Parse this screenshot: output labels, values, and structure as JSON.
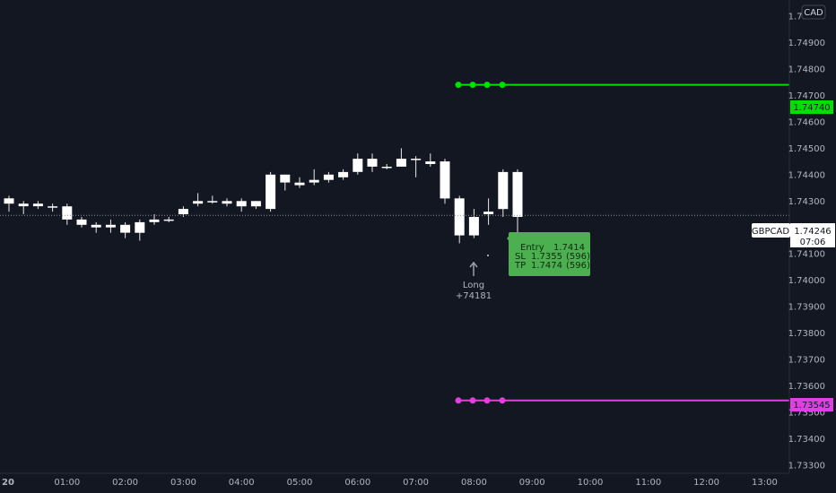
{
  "currency_badge": "CAD",
  "symbol": "GBPCAD",
  "last_price": "1.74246",
  "countdown": "07:06",
  "tp_level_label": "1.74740",
  "sl_level_label": "1.73545",
  "signal": {
    "label": "Long",
    "price": "+74181"
  },
  "trade_box": {
    "entry": [
      "Entry",
      "1.7414",
      ""
    ],
    "sl": [
      "SL",
      "1.7355",
      "(596)"
    ],
    "tp": [
      "TP",
      "1.7474",
      "(596)"
    ]
  },
  "colors": {
    "background": "#131722",
    "tp": "#00e000",
    "sl": "#e040e0",
    "trade_box": "#4caf50"
  },
  "chart_data": {
    "type": "candlestick",
    "symbol": "GBPCAD",
    "xlabel": "",
    "ylabel": "",
    "ylim": [
      1.7327,
      1.7514
    ],
    "y_ticks": [
      1.75,
      1.749,
      1.748,
      1.747,
      1.746,
      1.745,
      1.744,
      1.743,
      1.741,
      1.74,
      1.739,
      1.738,
      1.737,
      1.736,
      1.735,
      1.734,
      1.733
    ],
    "y_tick_labels": [
      "1.75000",
      "1.74900",
      "1.74800",
      "1.74700",
      "1.74600",
      "1.74500",
      "1.74400",
      "1.74300",
      "1.74100",
      "1.74000",
      "1.73900",
      "1.73800",
      "1.73700",
      "1.73600",
      "1.73500",
      "1.73400",
      "1.73300"
    ],
    "x_ticks": [
      "20",
      "01:00",
      "02:00",
      "03:00",
      "04:00",
      "05:00",
      "06:00",
      "07:00",
      "08:00",
      "09:00",
      "10:00",
      "11:00",
      "12:00",
      "13:00"
    ],
    "candle_interval": "15m",
    "candles": [
      {
        "t": "00:00",
        "o": 1.7429,
        "h": 1.7432,
        "l": 1.7426,
        "c": 1.7431
      },
      {
        "t": "00:15",
        "o": 1.7429,
        "h": 1.743,
        "l": 1.7425,
        "c": 1.7428
      },
      {
        "t": "00:30",
        "o": 1.7428,
        "h": 1.743,
        "l": 1.7427,
        "c": 1.7429
      },
      {
        "t": "00:45",
        "o": 1.7428,
        "h": 1.7429,
        "l": 1.7426,
        "c": 1.7428
      },
      {
        "t": "01:00",
        "o": 1.7428,
        "h": 1.7429,
        "l": 1.7421,
        "c": 1.7423
      },
      {
        "t": "01:15",
        "o": 1.7423,
        "h": 1.7424,
        "l": 1.742,
        "c": 1.7421
      },
      {
        "t": "01:30",
        "o": 1.7421,
        "h": 1.7422,
        "l": 1.7418,
        "c": 1.742
      },
      {
        "t": "01:45",
        "o": 1.742,
        "h": 1.7423,
        "l": 1.7418,
        "c": 1.7421
      },
      {
        "t": "02:00",
        "o": 1.7421,
        "h": 1.7422,
        "l": 1.7416,
        "c": 1.7418
      },
      {
        "t": "02:15",
        "o": 1.7418,
        "h": 1.7423,
        "l": 1.7415,
        "c": 1.7422
      },
      {
        "t": "02:30",
        "o": 1.7422,
        "h": 1.7425,
        "l": 1.7421,
        "c": 1.7423
      },
      {
        "t": "02:45",
        "o": 1.7423,
        "h": 1.7424,
        "l": 1.7422,
        "c": 1.7423
      },
      {
        "t": "03:00",
        "o": 1.7425,
        "h": 1.7428,
        "l": 1.7424,
        "c": 1.7427
      },
      {
        "t": "03:15",
        "o": 1.7429,
        "h": 1.7433,
        "l": 1.7428,
        "c": 1.743
      },
      {
        "t": "03:30",
        "o": 1.743,
        "h": 1.7432,
        "l": 1.7429,
        "c": 1.743
      },
      {
        "t": "03:45",
        "o": 1.743,
        "h": 1.7431,
        "l": 1.7428,
        "c": 1.7429
      },
      {
        "t": "04:00",
        "o": 1.743,
        "h": 1.7431,
        "l": 1.7426,
        "c": 1.7428
      },
      {
        "t": "04:15",
        "o": 1.743,
        "h": 1.743,
        "l": 1.7427,
        "c": 1.7428
      },
      {
        "t": "04:30",
        "o": 1.7427,
        "h": 1.7441,
        "l": 1.7426,
        "c": 1.744
      },
      {
        "t": "04:45",
        "o": 1.744,
        "h": 1.744,
        "l": 1.7434,
        "c": 1.7437
      },
      {
        "t": "05:00",
        "o": 1.7436,
        "h": 1.7439,
        "l": 1.7435,
        "c": 1.7437
      },
      {
        "t": "05:15",
        "o": 1.7438,
        "h": 1.7442,
        "l": 1.7436,
        "c": 1.7437
      },
      {
        "t": "05:30",
        "o": 1.7438,
        "h": 1.7441,
        "l": 1.7437,
        "c": 1.744
      },
      {
        "t": "05:45",
        "o": 1.7439,
        "h": 1.7442,
        "l": 1.7438,
        "c": 1.7441
      },
      {
        "t": "06:00",
        "o": 1.7441,
        "h": 1.7448,
        "l": 1.744,
        "c": 1.7446
      },
      {
        "t": "06:15",
        "o": 1.7446,
        "h": 1.7448,
        "l": 1.7441,
        "c": 1.7443
      },
      {
        "t": "06:30",
        "o": 1.7443,
        "h": 1.7444,
        "l": 1.7442,
        "c": 1.7443
      },
      {
        "t": "06:45",
        "o": 1.7443,
        "h": 1.745,
        "l": 1.7443,
        "c": 1.7446
      },
      {
        "t": "07:00",
        "o": 1.7446,
        "h": 1.7447,
        "l": 1.7439,
        "c": 1.7446
      },
      {
        "t": "07:15",
        "o": 1.7445,
        "h": 1.7448,
        "l": 1.7443,
        "c": 1.7444
      },
      {
        "t": "07:30",
        "o": 1.7445,
        "h": 1.7446,
        "l": 1.7429,
        "c": 1.7431
      },
      {
        "t": "07:45",
        "o": 1.7431,
        "h": 1.7432,
        "l": 1.7414,
        "c": 1.7417
      },
      {
        "t": "08:00",
        "o": 1.7417,
        "h": 1.7427,
        "l": 1.7416,
        "c": 1.7424
      },
      {
        "t": "08:15",
        "o": 1.7425,
        "h": 1.7431,
        "l": 1.7421,
        "c": 1.7426
      },
      {
        "t": "08:30",
        "o": 1.7427,
        "h": 1.7442,
        "l": 1.7424,
        "c": 1.7441
      },
      {
        "t": "08:45",
        "o": 1.7441,
        "h": 1.7442,
        "l": 1.7418,
        "c": 1.7424
      }
    ],
    "levels": [
      {
        "name": "TP",
        "value": 1.7474,
        "color": "#00e000"
      },
      {
        "name": "SL",
        "value": 1.73545,
        "color": "#e040e0"
      }
    ],
    "current_price": 1.74246
  }
}
